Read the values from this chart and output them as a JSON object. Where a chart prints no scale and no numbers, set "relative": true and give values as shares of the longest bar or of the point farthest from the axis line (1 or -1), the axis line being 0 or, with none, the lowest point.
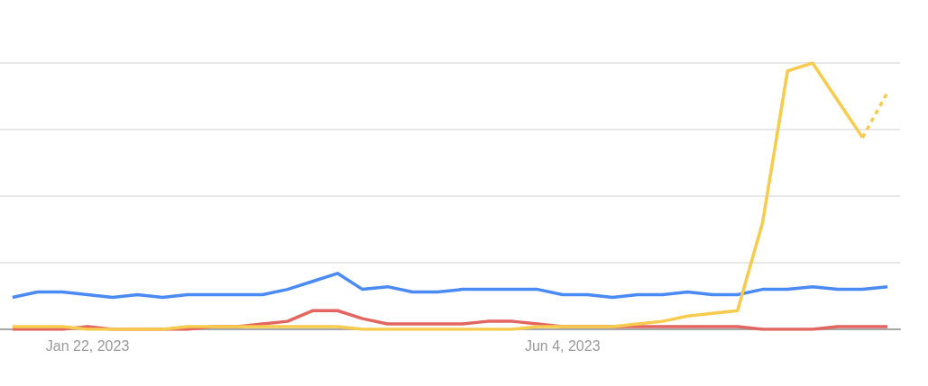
{
  "chart_data": {
    "type": "line",
    "relative": true,
    "grid": "y",
    "marker": "none",
    "line_style": "solid",
    "categories": [
      null,
      null,
      null,
      "Jan 22, 2023",
      null,
      null,
      null,
      null,
      null,
      null,
      null,
      null,
      null,
      null,
      null,
      null,
      null,
      null,
      null,
      null,
      null,
      null,
      "Jun 4, 2023",
      null,
      null,
      null,
      null,
      null,
      null,
      null,
      null,
      null,
      null,
      null,
      null,
      null
    ],
    "series": [
      {
        "color": "#4a8af4",
        "values": [
          0.12,
          0.14,
          0.14,
          0.13,
          0.12,
          0.13,
          0.12,
          0.13,
          0.13,
          0.13,
          0.13,
          0.15,
          0.18,
          0.21,
          0.15,
          0.16,
          0.14,
          0.14,
          0.15,
          0.15,
          0.15,
          0.15,
          0.13,
          0.13,
          0.12,
          0.13,
          0.13,
          0.14,
          0.13,
          0.13,
          0.15,
          0.15,
          0.16,
          0.15,
          0.15,
          0.16
        ]
      },
      {
        "color": "#e2665f",
        "values": [
          0,
          0,
          0,
          0.01,
          0,
          0,
          0,
          0,
          0.01,
          0.01,
          0.02,
          0.03,
          0.07,
          0.07,
          0.04,
          0.02,
          0.02,
          0.02,
          0.02,
          0.03,
          0.03,
          0.02,
          0.01,
          0.01,
          0.01,
          0.01,
          0.01,
          0.01,
          0.01,
          0.01,
          0,
          0,
          0,
          0.01,
          0.01,
          0.01
        ]
      },
      {
        "color": "#f7cb4d",
        "values": [
          0.01,
          0.01,
          0.01,
          0,
          0,
          0,
          0,
          0.01,
          0.01,
          0.01,
          0.01,
          0.01,
          0.01,
          0.01,
          0,
          0,
          0,
          0,
          0,
          0,
          0,
          0.01,
          0.01,
          0.01,
          0.01,
          0.02,
          0.03,
          0.05,
          0.06,
          0.07,
          0.4,
          0.97,
          1,
          0.86,
          0.72,
          null
        ]
      },
      {
        "color": "#f7cb4d",
        "line_style": "dotted",
        "values": [
          null,
          null,
          null,
          null,
          null,
          null,
          null,
          null,
          null,
          null,
          null,
          null,
          null,
          null,
          null,
          null,
          null,
          null,
          null,
          null,
          null,
          null,
          null,
          null,
          null,
          null,
          null,
          null,
          null,
          null,
          null,
          null,
          null,
          null,
          0.72,
          0.89
        ]
      }
    ]
  }
}
